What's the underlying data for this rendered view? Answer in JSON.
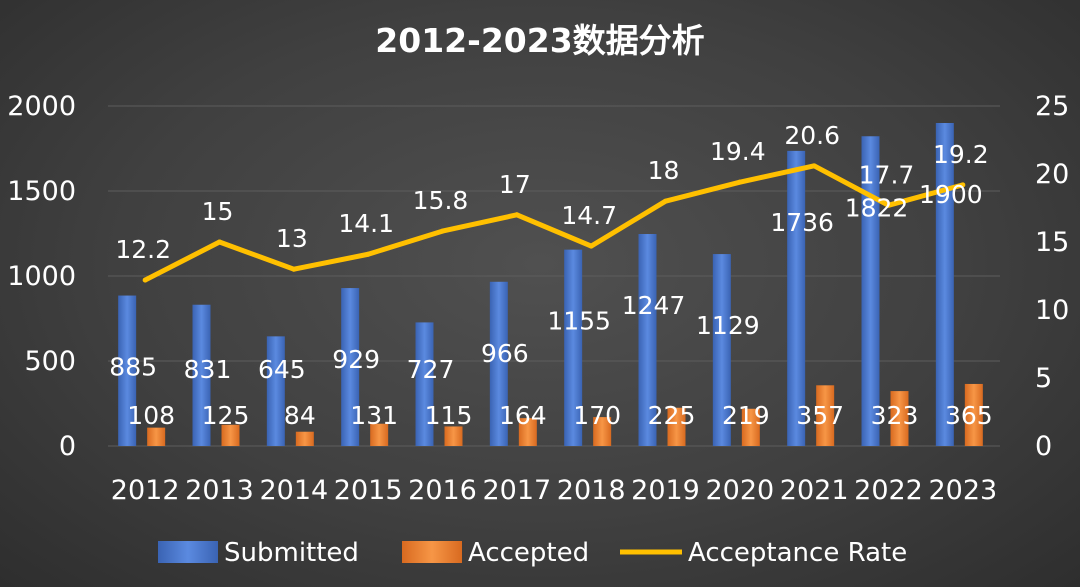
{
  "chart_data": {
    "type": "bar",
    "title": "2012-2023数据分析",
    "categories": [
      "2012",
      "2013",
      "2014",
      "2015",
      "2016",
      "2017",
      "2018",
      "2019",
      "2020",
      "2021",
      "2022",
      "2023"
    ],
    "series": [
      {
        "name": "Submitted",
        "type": "bar",
        "axis": "left",
        "color": "#4472c4",
        "values": [
          885,
          831,
          645,
          929,
          727,
          966,
          1155,
          1247,
          1129,
          1736,
          1822,
          1900
        ]
      },
      {
        "name": "Accepted",
        "type": "bar",
        "axis": "left",
        "color": "#ed7d31",
        "values": [
          108,
          125,
          84,
          131,
          115,
          164,
          170,
          225,
          219,
          357,
          323,
          365
        ]
      },
      {
        "name": "Acceptance Rate",
        "type": "line",
        "axis": "right",
        "color": "#ffc000",
        "values": [
          12.2,
          15,
          13,
          14.1,
          15.8,
          17,
          14.7,
          18,
          19.4,
          20.6,
          17.7,
          19.2
        ]
      }
    ],
    "y_left": {
      "min": 0,
      "max": 2000,
      "ticks": [
        0,
        500,
        1000,
        1500,
        2000
      ]
    },
    "y_right": {
      "min": 0,
      "max": 25,
      "ticks": [
        0,
        5,
        10,
        15,
        20,
        25
      ]
    },
    "grid": true,
    "legend_position": "bottom"
  }
}
